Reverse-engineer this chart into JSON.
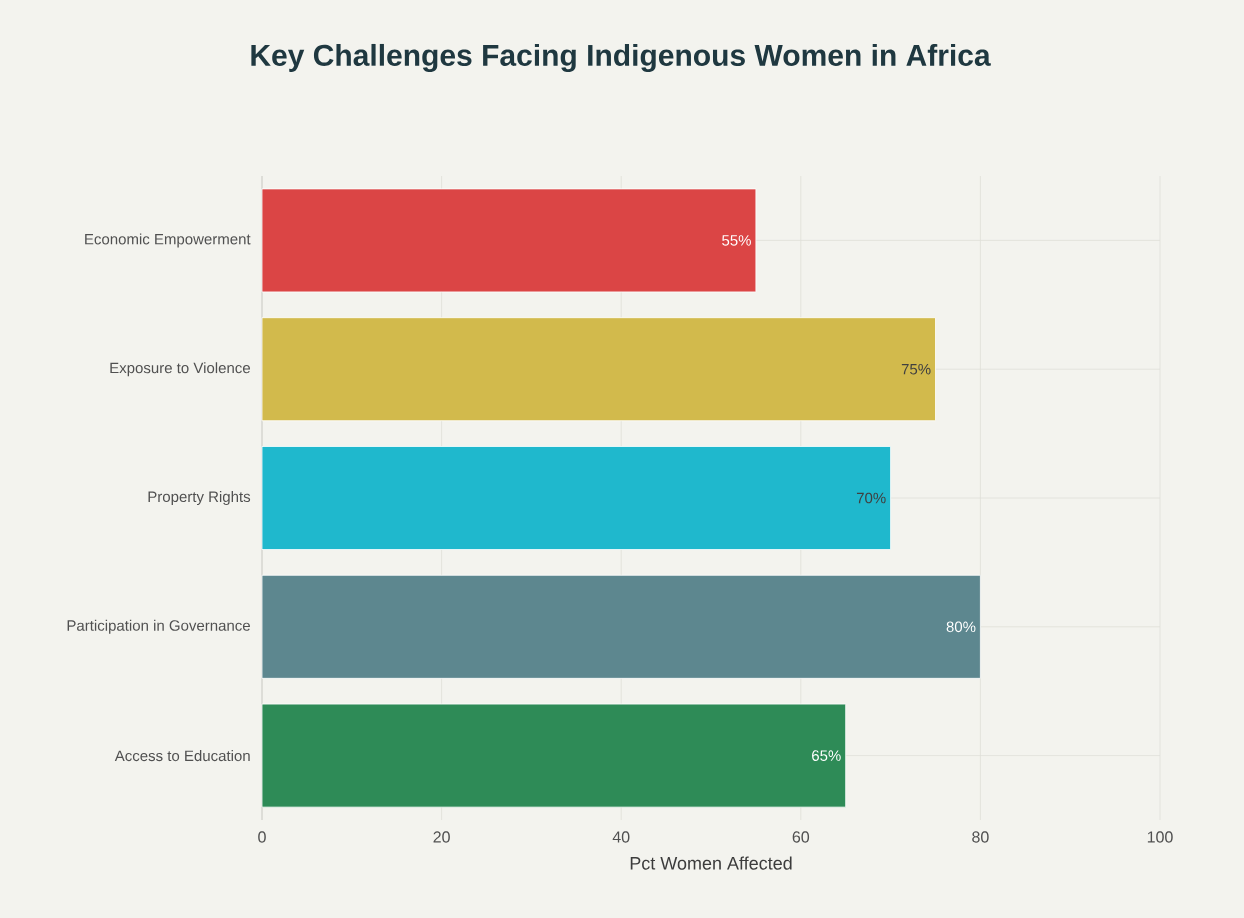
{
  "chart_data": {
    "type": "bar",
    "orientation": "horizontal",
    "title": "Key Challenges Facing Indigenous Women in Africa",
    "xlabel": "Pct Women Affected",
    "categories": [
      "Economic Empowerment",
      "Exposure to Violence",
      "Property Rights",
      "Participation in Governance",
      "Access to Education"
    ],
    "values": [
      55,
      75,
      70,
      80,
      65
    ],
    "value_labels": [
      "55%",
      "75%",
      "70%",
      "80%",
      "65%"
    ],
    "colors": [
      "#db4545",
      "#d2ba4c",
      "#1fb8cd",
      "#5d878f",
      "#2e8b57"
    ],
    "xlim": [
      0,
      100
    ],
    "xticks": [
      0,
      20,
      40,
      60,
      80,
      100
    ],
    "grid": true
  }
}
